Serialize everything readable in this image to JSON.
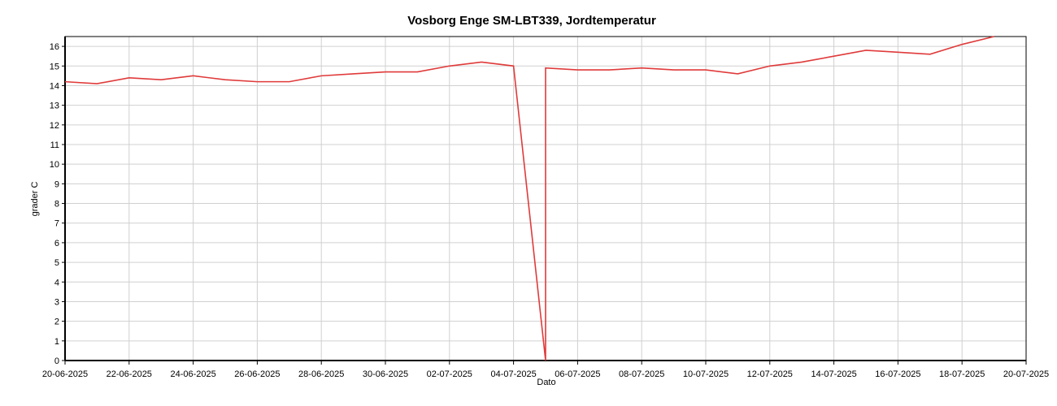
{
  "chart_data": {
    "type": "line",
    "title": "Vosborg Enge SM-LBT339, Jordtemperatur",
    "x_label": "Dato",
    "y_label": "grader C",
    "x": [
      "20-06-2025",
      "21-06-2025",
      "22-06-2025",
      "23-06-2025",
      "24-06-2025",
      "25-06-2025",
      "26-06-2025",
      "27-06-2025",
      "28-06-2025",
      "29-06-2025",
      "30-06-2025",
      "01-07-2025",
      "02-07-2025",
      "03-07-2025",
      "04-07-2025",
      "05-07-2025",
      "05-07-2025",
      "06-07-2025",
      "07-07-2025",
      "08-07-2025",
      "09-07-2025",
      "10-07-2025",
      "11-07-2025",
      "12-07-2025",
      "13-07-2025",
      "14-07-2025",
      "15-07-2025",
      "16-07-2025",
      "17-07-2025",
      "18-07-2025",
      "19-07-2025"
    ],
    "values": [
      14.2,
      14.1,
      14.4,
      14.3,
      14.5,
      14.3,
      14.2,
      14.2,
      14.5,
      14.6,
      14.7,
      14.7,
      15.0,
      15.2,
      15.0,
      0,
      14.9,
      14.8,
      14.8,
      14.9,
      14.8,
      14.8,
      14.6,
      15.0,
      15.2,
      15.5,
      15.8,
      15.7,
      15.6,
      16.1,
      16.5
    ],
    "color": "#e03a3a",
    "xlim": [
      "20-06-2025",
      "20-07-2025"
    ],
    "xticks": [
      "20-06-2025",
      "22-06-2025",
      "24-06-2025",
      "26-06-2025",
      "28-06-2025",
      "30-06-2025",
      "02-07-2025",
      "04-07-2025",
      "06-07-2025",
      "08-07-2025",
      "10-07-2025",
      "12-07-2025",
      "14-07-2025",
      "16-07-2025",
      "18-07-2025",
      "20-07-2025"
    ],
    "ylim": [
      0,
      16.5
    ],
    "yticks": [
      0,
      1,
      2,
      3,
      4,
      5,
      6,
      7,
      8,
      9,
      10,
      11,
      12,
      13,
      14,
      15,
      16
    ],
    "grid": true
  }
}
